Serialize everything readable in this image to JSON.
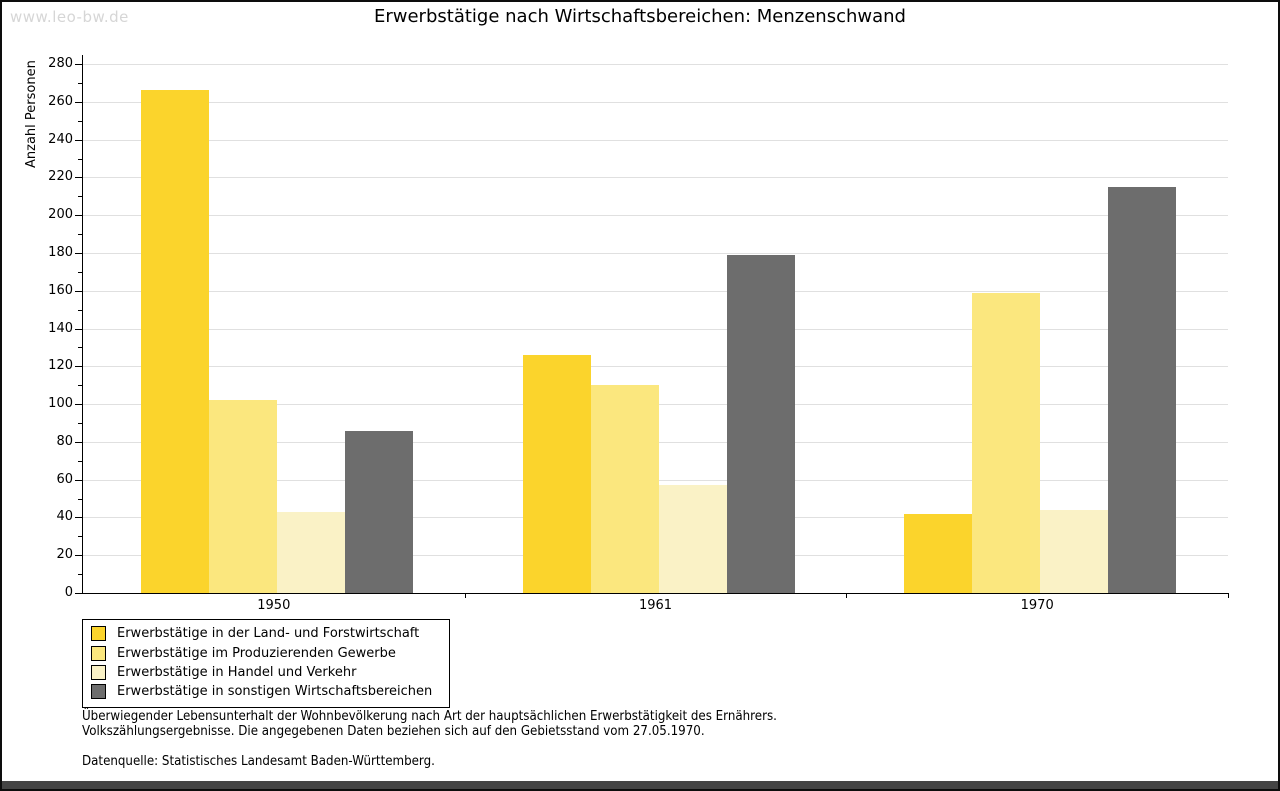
{
  "page": {
    "watermark": "www.leo-bw.de",
    "title": "Erwerbstätige nach Wirtschaftsbereichen: Menzenschwand"
  },
  "chart_data": {
    "type": "bar",
    "title": "Erwerbstätige nach Wirtschaftsbereichen: Menzenschwand",
    "xlabel": "",
    "ylabel": "Anzahl Personen",
    "ylim": [
      0,
      280
    ],
    "ytick_major_step": 20,
    "ytick_minor_step": 10,
    "grid": true,
    "legend_position": "bottom-left",
    "categories": [
      "1950",
      "1961",
      "1970"
    ],
    "series": [
      {
        "name": "Erwerbstätige in der Land- und Forstwirtschaft",
        "color": "#FBD42C",
        "values": [
          266,
          126,
          42
        ]
      },
      {
        "name": "Erwerbstätige im Produzierenden Gewerbe",
        "color": "#FBE77E",
        "values": [
          102,
          110,
          159
        ]
      },
      {
        "name": "Erwerbstätige in Handel und Verkehr",
        "color": "#FAF2C6",
        "values": [
          43,
          57,
          44
        ]
      },
      {
        "name": "Erwerbstätige in sonstigen Wirtschaftsbereichen",
        "color": "#6D6D6D",
        "values": [
          86,
          179,
          215
        ]
      }
    ]
  },
  "footnotes": {
    "line1": "Überwiegender Lebensunterhalt der Wohnbevölkerung nach Art der hauptsächlichen Erwerbstätigkeit des Ernährers.",
    "line2": "Volkszählungsergebnisse. Die angegebenen Daten beziehen sich auf den Gebietsstand vom 27.05.1970.",
    "source": "Datenquelle: Statistisches Landesamt Baden-Württemberg."
  },
  "colors": {
    "gridline": "#E0E0E0",
    "axis": "#000000",
    "watermark": "#D6D6D6",
    "bottom_bar": "#454545"
  }
}
